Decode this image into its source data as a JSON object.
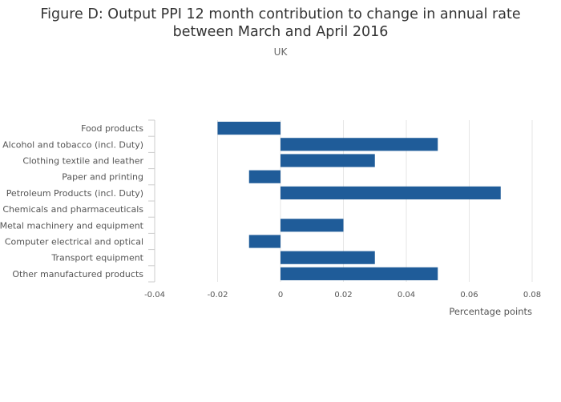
{
  "chart_data": {
    "type": "bar",
    "orientation": "horizontal",
    "title_lines": [
      "Figure D: Output PPI 12 month contribution to change in annual rate",
      "between March and April 2016"
    ],
    "subtitle": "UK",
    "xlabel": "Percentage points",
    "ylabel": "",
    "xlim": [
      -0.04,
      0.08
    ],
    "xticks": [
      -0.04,
      -0.02,
      0,
      0.02,
      0.04,
      0.06,
      0.08
    ],
    "xtick_labels": [
      "-0.04",
      "-0.02",
      "0",
      "0.02",
      "0.04",
      "0.06",
      "0.08"
    ],
    "grid": true,
    "bar_color": "#1f5c99",
    "categories": [
      "Food products",
      "Alcohol and tobacco (incl. Duty)",
      "Clothing textile and leather",
      "Paper and printing",
      "Petroleum Products (incl. Duty)",
      "Chemicals and pharmaceuticals",
      "Metal machinery and equipment",
      "Computer electrical and optical",
      "Transport equipment",
      "Other manufactured products"
    ],
    "values": [
      -0.02,
      0.05,
      0.03,
      -0.01,
      0.07,
      0,
      0.02,
      -0.01,
      0.03,
      0.05
    ]
  }
}
